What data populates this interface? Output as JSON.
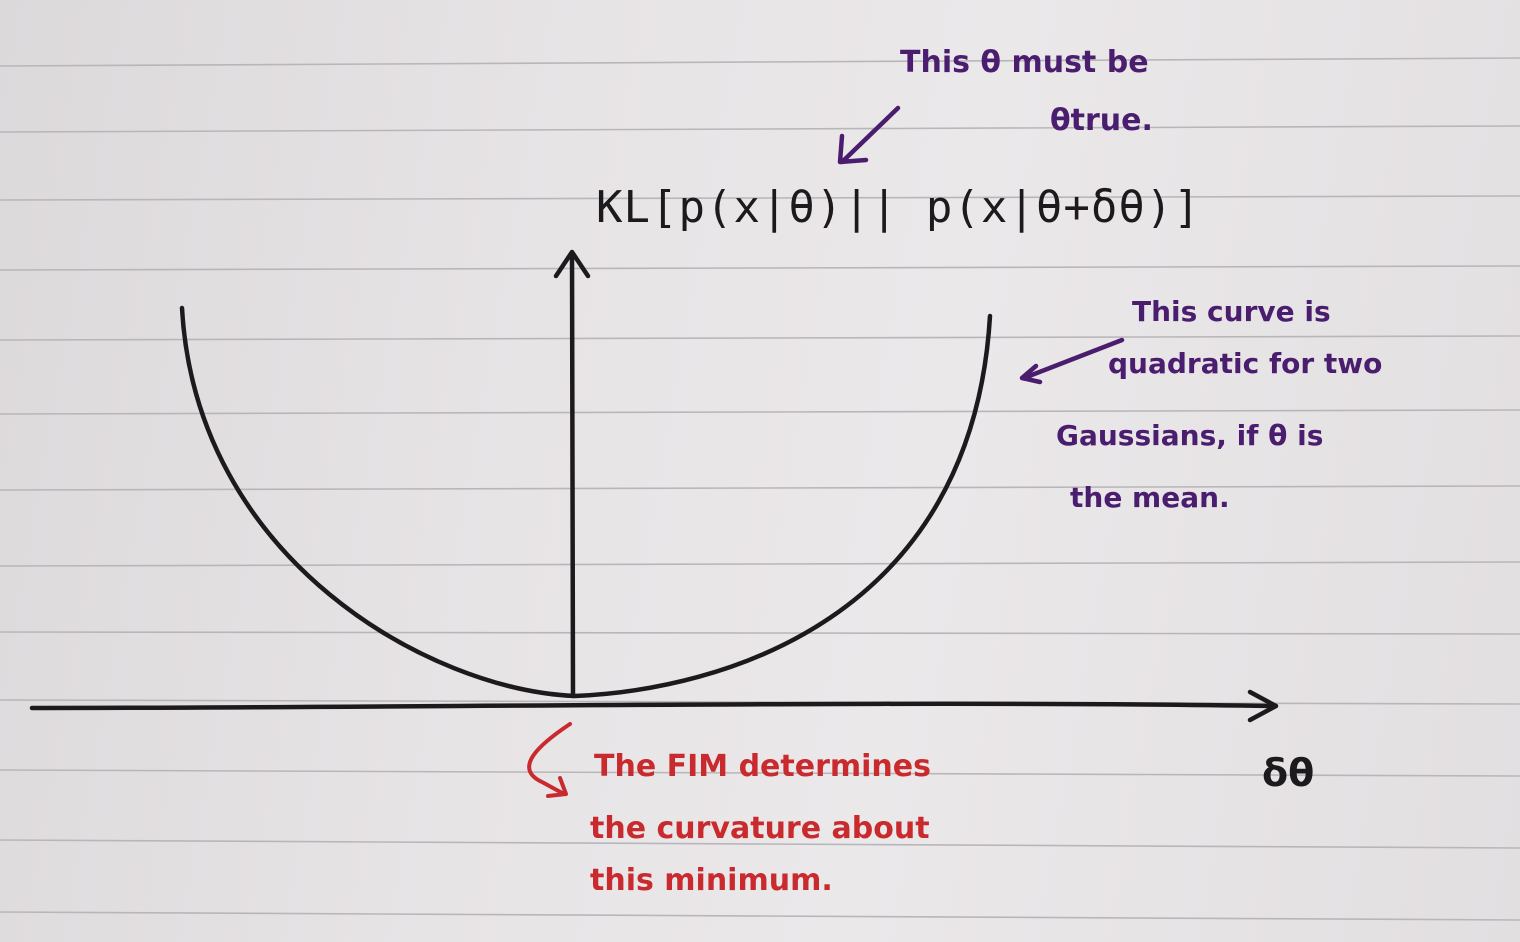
{
  "diagram": {
    "formula": "KL[p(x|θ)|| p(x|θ+δθ)]",
    "x_axis_label": "δθ",
    "annotations": {
      "top_note": [
        "This θ must be",
        "θtrue."
      ],
      "right_note": [
        "This curve is",
        "quadratic for two",
        "Gaussians, if θ is",
        "the mean."
      ],
      "bottom_note": [
        "The FIM determines",
        "the curvature about",
        "this minimum."
      ]
    },
    "colors": {
      "ink_black": "#1c1a1c",
      "ink_purple": "#4a1d6e",
      "ink_red": "#c92a2e",
      "ruled_line": "#b9b6bb"
    }
  }
}
